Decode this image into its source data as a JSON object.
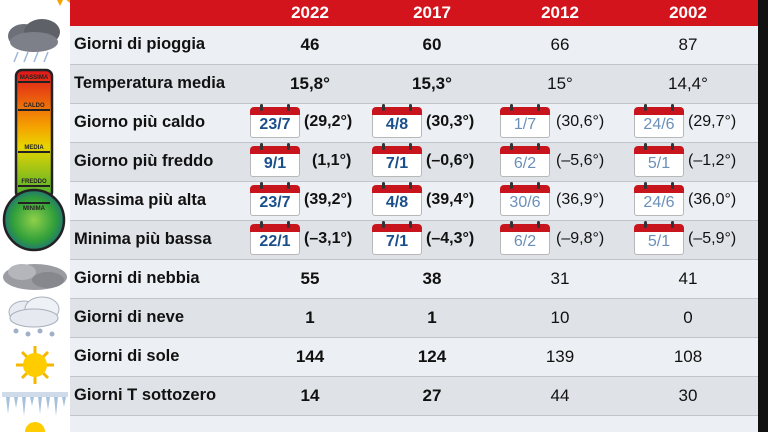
{
  "header": {
    "years": [
      "2022",
      "2017",
      "2012",
      "2002"
    ]
  },
  "rows": [
    {
      "label": "Giorni di pioggia",
      "values": [
        "46",
        "60",
        "66",
        "87"
      ]
    },
    {
      "label": "Temperatura media",
      "values": [
        "15,8°",
        "15,3°",
        "15°",
        "14,4°"
      ]
    },
    {
      "label": "Giorno più caldo",
      "dates": [
        "23/7",
        "4/8",
        "1/7",
        "24/6"
      ],
      "temps": [
        "(29,2°)",
        "(30,3°)",
        "(30,6°)",
        "(29,7°)"
      ]
    },
    {
      "label": "Giorno più freddo",
      "dates": [
        "9/1",
        "7/1",
        "6/2",
        "5/1"
      ],
      "temps": [
        "(1,1°)",
        "(–0,6°)",
        "(–5,6°)",
        "(–1,2°)"
      ]
    },
    {
      "label": "Massima più alta",
      "dates": [
        "23/7",
        "4/8",
        "30/6",
        "24/6"
      ],
      "temps": [
        "(39,2°)",
        "(39,4°)",
        "(36,9°)",
        "(36,0°)"
      ]
    },
    {
      "label": "Minima più bassa",
      "dates": [
        "22/1",
        "7/1",
        "6/2",
        "5/1"
      ],
      "temps": [
        "(–3,1°)",
        "(–4,3°)",
        "(–9,8°)",
        "(–5,9°)"
      ]
    },
    {
      "label": "Giorni di nebbia",
      "values": [
        "55",
        "38",
        "31",
        "41"
      ]
    },
    {
      "label": "Giorni di neve",
      "values": [
        "1",
        "1",
        "10",
        "0"
      ]
    },
    {
      "label": "Giorni di sole",
      "values": [
        "144",
        "124",
        "139",
        "108"
      ]
    },
    {
      "label": "Giorni T sottozero",
      "values": [
        "14",
        "27",
        "44",
        "30"
      ]
    }
  ],
  "thermometer": {
    "labels": [
      "MASSIMA",
      "CALDO",
      "MEDIA",
      "FREDDO",
      "MINIMA"
    ]
  },
  "icons": [
    "sun-icon",
    "rain-cloud-icon",
    "thermometer-icon",
    "fog-icon",
    "snow-cloud-icon",
    "sun-icon",
    "icicles-icon"
  ],
  "colors": {
    "header": "#d4141c",
    "calendar_red": "#c8141c",
    "date_blue": "#1b4f8a",
    "row_light": "#eceff3",
    "row_dark": "#dfe3e8"
  }
}
